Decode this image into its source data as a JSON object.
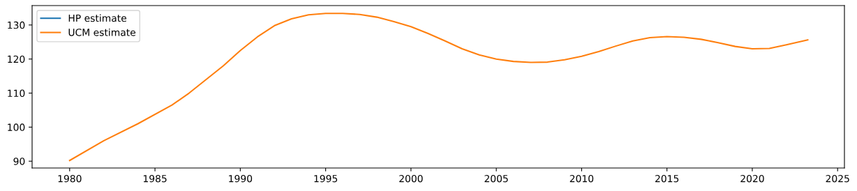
{
  "chart_data": {
    "type": "line",
    "x": [
      1980,
      1982,
      1984,
      1986,
      1987,
      1988,
      1989,
      1990,
      1991,
      1992,
      1993,
      1994,
      1995,
      1996,
      1997,
      1998,
      1999,
      2000,
      2001,
      2002,
      2003,
      2004,
      2005,
      2006,
      2007,
      2008,
      2009,
      2010,
      2011,
      2012,
      2013,
      2014,
      2015,
      2016,
      2017,
      2018,
      2019,
      2020,
      2021,
      2022,
      2023.25
    ],
    "series": [
      {
        "name": "HP estimate",
        "color": "#1f77b4",
        "values": [
          null,
          null,
          null,
          null,
          null,
          null,
          null,
          null,
          null,
          null,
          null,
          null,
          null,
          null,
          null,
          null,
          null,
          null,
          null,
          null,
          null,
          null,
          null,
          null,
          null,
          null,
          null,
          null,
          null,
          null,
          null,
          null,
          null,
          null,
          null,
          null,
          null,
          null,
          null,
          null,
          null
        ]
      },
      {
        "name": "UCM estimate",
        "color": "#ff7f0e",
        "values": [
          90.2,
          96,
          101,
          106.5,
          110,
          114,
          118,
          122.5,
          126.5,
          129.8,
          131.8,
          133,
          133.4,
          133.4,
          133.1,
          132.3,
          131,
          129.5,
          127.5,
          125.3,
          123,
          121.2,
          120.0,
          119.3,
          119.0,
          119.1,
          119.8,
          120.8,
          122.2,
          123.8,
          125.3,
          126.3,
          126.6,
          126.4,
          125.8,
          124.8,
          123.7,
          123.0,
          123.1,
          124.2,
          125.6
        ]
      }
    ],
    "xlim": [
      1977.8,
      2025.4
    ],
    "xticks": [
      1980,
      1985,
      1990,
      1995,
      2000,
      2005,
      2010,
      2015,
      2020,
      2025
    ],
    "ylim": [
      88.0,
      135.7
    ],
    "yticks": [
      90,
      100,
      110,
      120,
      130
    ],
    "legend": "top left",
    "grid": false,
    "marker": "none",
    "line_style": "solid"
  }
}
